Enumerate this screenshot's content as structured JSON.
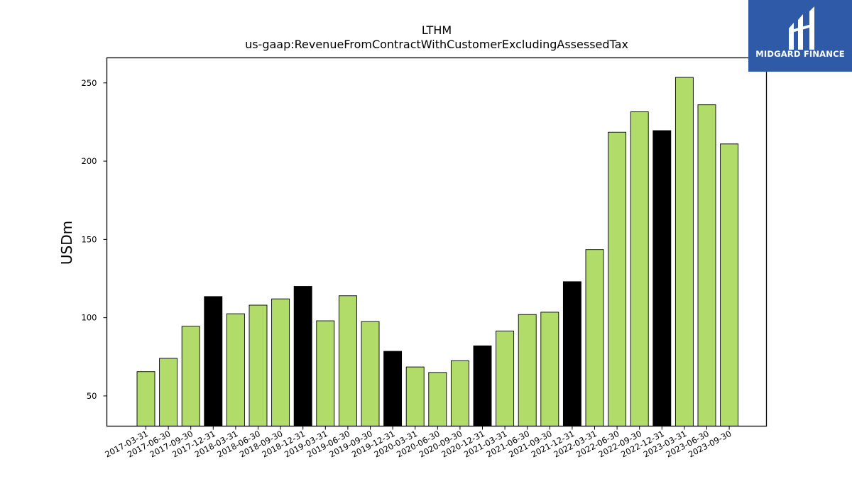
{
  "brand": {
    "name": "MIDGARD FINANCE",
    "background": "#2f5aa8"
  },
  "colors": {
    "quarter_bar": "#b2dc6a",
    "year_end_bar": "#000000",
    "edge": "#000000"
  },
  "chart_data": {
    "type": "bar",
    "title": "LTHM",
    "subtitle": "us-gaap:RevenueFromContractWithCustomerExcludingAssessedTax",
    "xlabel": "",
    "ylabel": "USDm",
    "ylim": [
      30.7,
      266
    ],
    "yticks": [
      50,
      100,
      150,
      200,
      250
    ],
    "grid": false,
    "categories": [
      "2017-03-31",
      "2017-06-30",
      "2017-09-30",
      "2017-12-31",
      "2018-03-31",
      "2018-06-30",
      "2018-09-30",
      "2018-12-31",
      "2019-03-31",
      "2019-06-30",
      "2019-09-30",
      "2019-12-31",
      "2020-03-31",
      "2020-06-30",
      "2020-09-30",
      "2020-12-31",
      "2021-03-31",
      "2021-06-30",
      "2021-09-30",
      "2021-12-31",
      "2022-03-31",
      "2022-06-30",
      "2022-09-30",
      "2022-12-31",
      "2023-03-31",
      "2023-06-30",
      "2023-09-30"
    ],
    "values": [
      65.5,
      74.0,
      94.5,
      113.5,
      102.5,
      108.0,
      112.0,
      120.0,
      98.0,
      114.0,
      97.5,
      78.5,
      68.5,
      65.0,
      72.5,
      82.0,
      91.5,
      102.0,
      103.5,
      123.0,
      143.5,
      218.5,
      231.5,
      219.5,
      253.5,
      236.0,
      211.0
    ],
    "year_end": [
      false,
      false,
      false,
      true,
      false,
      false,
      false,
      true,
      false,
      false,
      false,
      true,
      false,
      false,
      false,
      true,
      false,
      false,
      false,
      true,
      false,
      false,
      false,
      true,
      false,
      false,
      false
    ]
  }
}
